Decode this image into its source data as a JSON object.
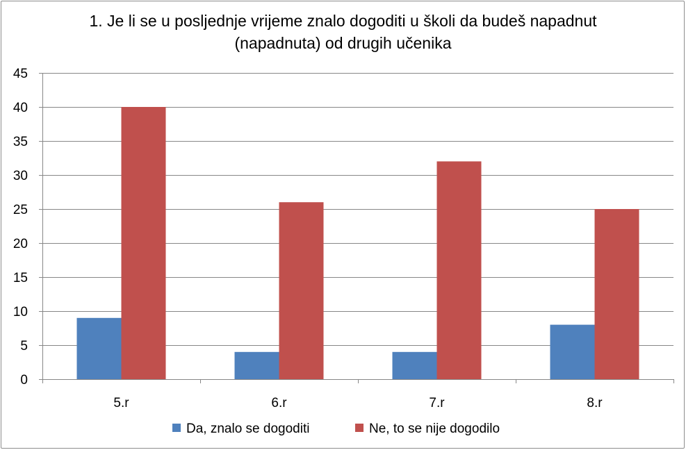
{
  "chart_data": {
    "type": "bar",
    "title_lines": [
      "1. Je li se u posljednje vrijeme znalo dogoditi u školi da budeš napadnut",
      "(napadnuta) od drugih učenika"
    ],
    "categories": [
      "5.r",
      "6.r",
      "7.r",
      "8.r"
    ],
    "series": [
      {
        "name": "Da, znalo se dogoditi",
        "values": [
          9,
          4,
          4,
          8
        ],
        "color": "#4f81bd"
      },
      {
        "name": "Ne, to se nije dogodilo",
        "values": [
          40,
          26,
          32,
          25
        ],
        "color": "#c0504d"
      }
    ],
    "ylim": [
      0,
      45
    ],
    "yticks": [
      0,
      5,
      10,
      15,
      20,
      25,
      30,
      35,
      40,
      45
    ],
    "grid": true,
    "legend_position": "bottom"
  }
}
